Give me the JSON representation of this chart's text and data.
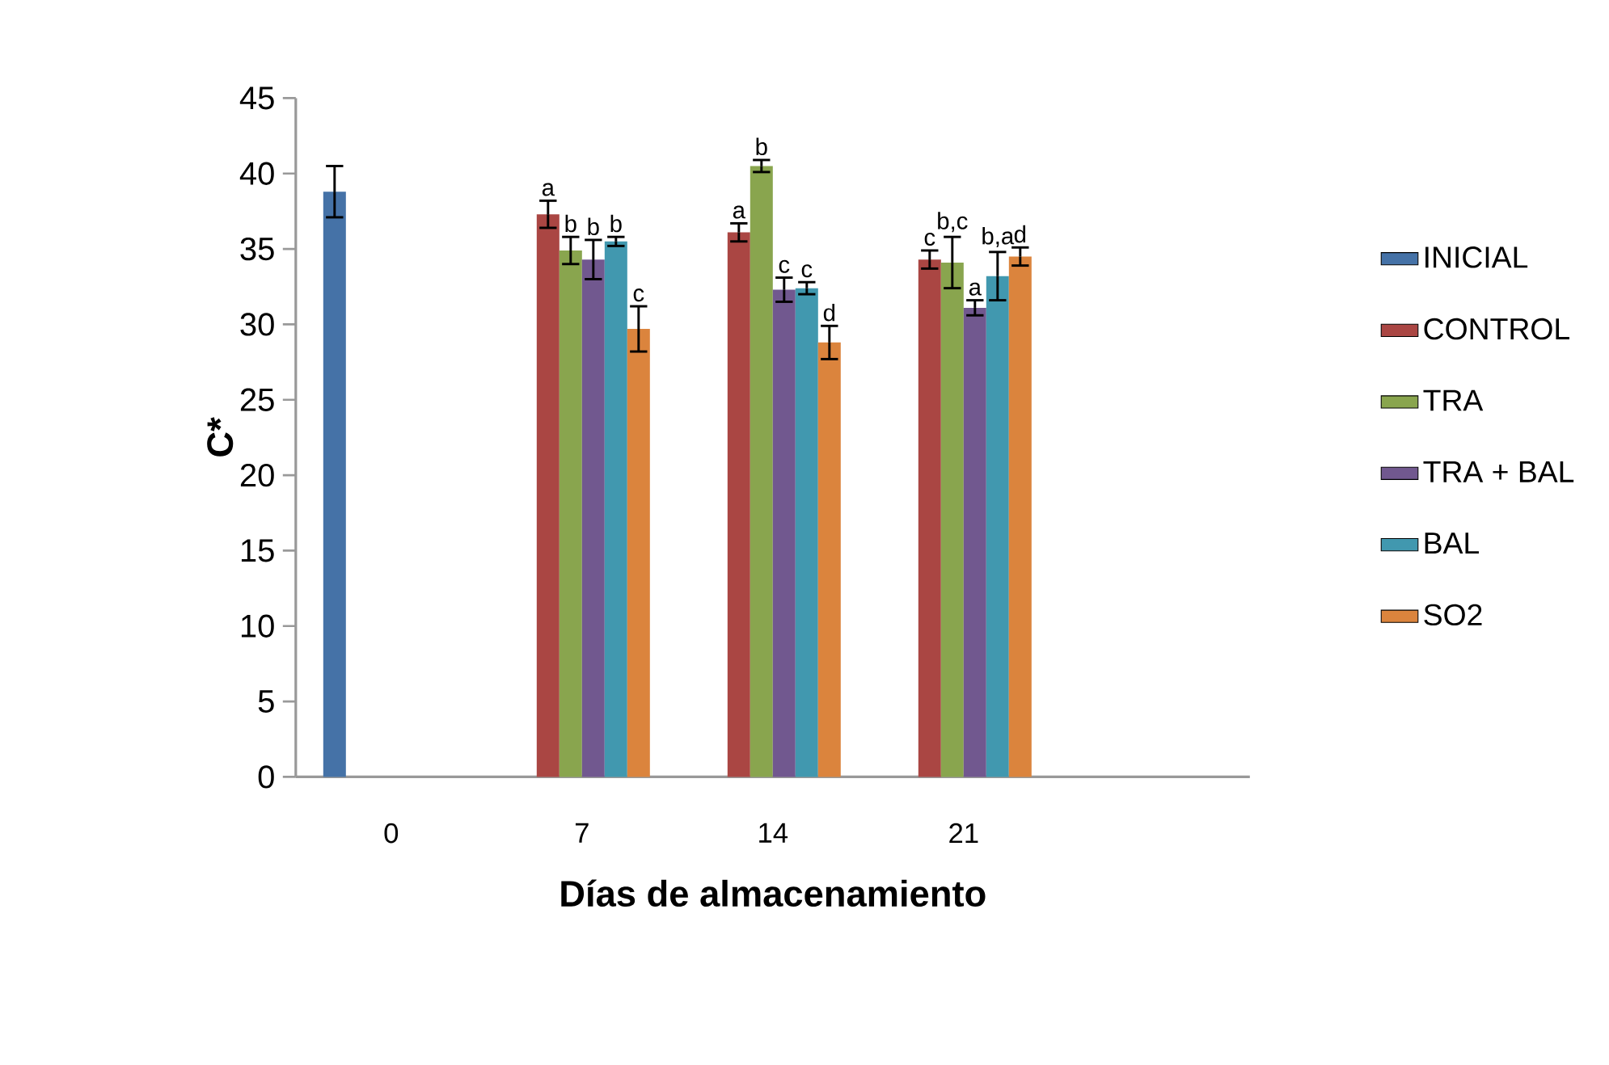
{
  "chart_data": {
    "type": "bar",
    "xlabel": "Días de almacenamiento",
    "ylabel": "C*",
    "categories": [
      "0",
      "7",
      "14",
      "21",
      null
    ],
    "series": [
      {
        "name": "INICIAL",
        "color": "#4572a7",
        "values": [
          38.8,
          null,
          null,
          null,
          null
        ],
        "errors": [
          1.7,
          null,
          null,
          null,
          null
        ]
      },
      {
        "name": "CONTROL",
        "color": "#aa4643",
        "values": [
          null,
          37.3,
          36.1,
          34.3,
          null
        ],
        "errors": [
          null,
          0.9,
          0.6,
          0.6,
          null
        ],
        "value_labels": [
          null,
          "a",
          "a",
          "c",
          null
        ]
      },
      {
        "name": "TRA",
        "color": "#89a54e",
        "values": [
          null,
          34.9,
          40.5,
          34.1,
          null
        ],
        "errors": [
          null,
          0.9,
          0.4,
          1.7,
          null
        ],
        "value_labels": [
          null,
          "b",
          "b",
          "b,c",
          null
        ]
      },
      {
        "name": "TRA + BAL",
        "color": "#71588f",
        "values": [
          null,
          34.3,
          32.3,
          31.1,
          null
        ],
        "errors": [
          null,
          1.3,
          0.8,
          0.5,
          null
        ],
        "value_labels": [
          null,
          "b",
          "c",
          "a",
          null
        ]
      },
      {
        "name": "BAL",
        "color": "#4198af",
        "values": [
          null,
          35.5,
          32.4,
          33.2,
          null
        ],
        "errors": [
          null,
          0.3,
          0.4,
          1.6,
          null
        ],
        "value_labels": [
          null,
          "b",
          "c",
          "b,a",
          null
        ]
      },
      {
        "name": "SO2",
        "color": "#db843d",
        "values": [
          null,
          29.7,
          28.8,
          34.5,
          null
        ],
        "errors": [
          null,
          1.5,
          1.1,
          0.6,
          null
        ],
        "value_labels": [
          null,
          "c",
          "d",
          "d",
          null
        ]
      }
    ],
    "ylim": [
      0,
      45
    ],
    "yticks": [
      0,
      5,
      10,
      15,
      20,
      25,
      30,
      35,
      40,
      45
    ],
    "legend": "right"
  }
}
